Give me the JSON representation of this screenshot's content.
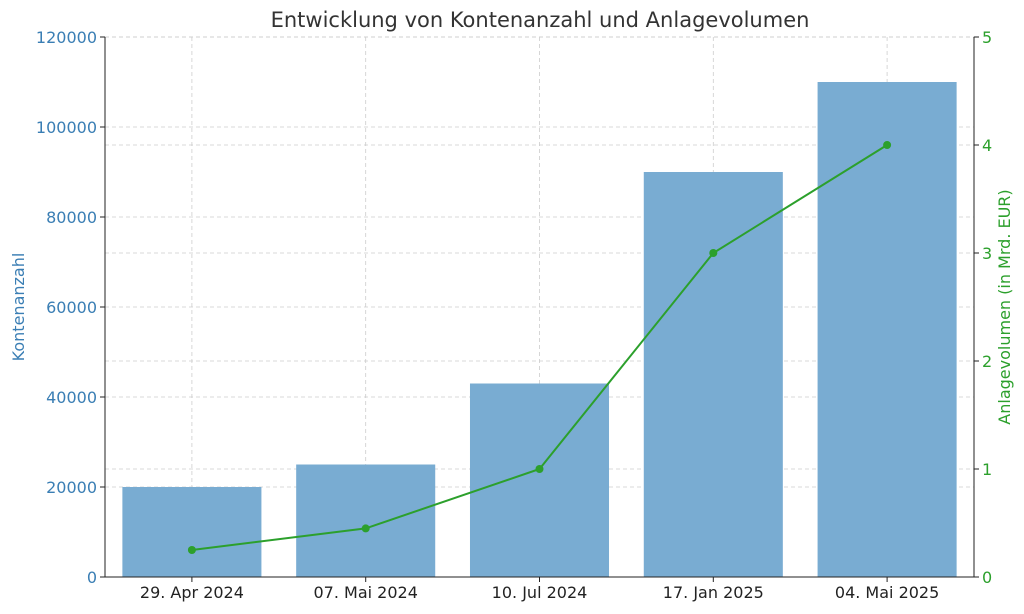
{
  "chart_data": {
    "type": "bar",
    "title": "Entwicklung von Kontenanzahl und Anlagevolumen",
    "xlabel": "",
    "categories": [
      "29. Apr 2024",
      "07. Mai 2024",
      "10. Jul 2024",
      "17. Jan 2025",
      "04. Mai 2025"
    ],
    "y_left": {
      "label": "Kontenanzahl",
      "lim": [
        0,
        120000
      ],
      "ticks": [
        0,
        20000,
        40000,
        60000,
        80000,
        100000,
        120000
      ],
      "color": "#3a7eb4"
    },
    "y_right": {
      "label": "Anlagevolumen (in Mrd. EUR)",
      "lim": [
        0,
        5
      ],
      "ticks": [
        0,
        1,
        2,
        3,
        4,
        5
      ],
      "color": "#2ca02c"
    },
    "series": [
      {
        "kind": "bar",
        "axis": "left",
        "color": "#79acd2",
        "values": [
          20000,
          25000,
          43000,
          90000,
          110000
        ]
      },
      {
        "kind": "line",
        "axis": "right",
        "color": "#2ca02c",
        "values": [
          0.25,
          0.45,
          1.0,
          3.0,
          4.0
        ]
      }
    ],
    "grid": true
  }
}
